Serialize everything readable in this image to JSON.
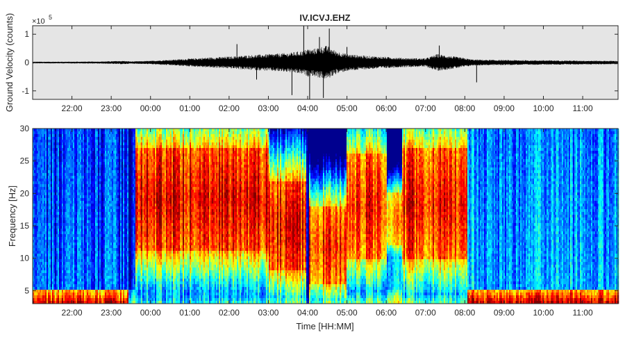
{
  "chart_data": [
    {
      "type": "line",
      "title": "IV.ICVJ.EHZ",
      "ylabel": "Ground Velocity (counts)",
      "y_exponent_label": "×10",
      "y_exponent": "5",
      "ylim": [
        -1.3,
        1.3
      ],
      "yticks": [
        -1,
        0,
        1
      ],
      "ytick_labels": [
        "-1",
        "0",
        "1"
      ],
      "xlim_hours": [
        21.0,
        35.9
      ],
      "xticks_hours": [
        22,
        23,
        24,
        25,
        26,
        27,
        28,
        29,
        30,
        31,
        32,
        33,
        34,
        35
      ],
      "xtick_labels": [
        "22:00",
        "23:00",
        "00:00",
        "01:00",
        "02:00",
        "03:00",
        "04:00",
        "05:00",
        "06:00",
        "07:00",
        "08:00",
        "09:00",
        "10:00",
        "11:00"
      ],
      "background": "#e5e5e5",
      "line_color": "#000000",
      "envelope": {
        "hours": [
          21.0,
          22.0,
          22.8,
          23.3,
          23.5,
          24.0,
          24.5,
          25.0,
          25.5,
          26.0,
          26.5,
          27.0,
          27.5,
          27.9,
          28.0,
          28.1,
          28.3,
          28.5,
          28.7,
          29.0,
          29.5,
          30.0,
          30.5,
          31.0,
          31.3,
          31.5,
          31.8,
          32.2,
          32.5,
          33.0,
          34.0,
          35.0,
          35.9
        ],
        "amplitude": [
          0.03,
          0.03,
          0.04,
          0.06,
          0.04,
          0.06,
          0.1,
          0.14,
          0.18,
          0.21,
          0.26,
          0.3,
          0.34,
          0.42,
          0.5,
          0.46,
          0.55,
          0.6,
          0.42,
          0.3,
          0.24,
          0.2,
          0.16,
          0.15,
          0.3,
          0.26,
          0.2,
          0.11,
          0.1,
          0.09,
          0.08,
          0.07,
          0.06
        ]
      },
      "spikes": [
        {
          "hour": 26.2,
          "value": 0.65
        },
        {
          "hour": 26.7,
          "value": -0.6
        },
        {
          "hour": 27.6,
          "value": -1.15
        },
        {
          "hour": 27.9,
          "value": 1.3
        },
        {
          "hour": 28.05,
          "value": -1.3
        },
        {
          "hour": 28.3,
          "value": 0.9
        },
        {
          "hour": 28.4,
          "value": -1.25
        },
        {
          "hour": 28.55,
          "value": 1.2
        },
        {
          "hour": 29.0,
          "value": 0.55
        },
        {
          "hour": 31.35,
          "value": 0.6
        },
        {
          "hour": 32.3,
          "value": -0.7
        }
      ]
    },
    {
      "type": "heatmap",
      "ylabel": "Frequency [Hz]",
      "xlabel": "Time [HH:MM]",
      "ylim": [
        3,
        30
      ],
      "yticks": [
        5,
        10,
        15,
        20,
        25,
        30
      ],
      "ytick_labels": [
        "5",
        "10",
        "15",
        "20",
        "25",
        "30"
      ],
      "xlim_hours": [
        21.0,
        35.9
      ],
      "xticks_hours": [
        22,
        23,
        24,
        25,
        26,
        27,
        28,
        29,
        30,
        31,
        32,
        33,
        34,
        35
      ],
      "xtick_labels": [
        "22:00",
        "23:00",
        "00:00",
        "01:00",
        "02:00",
        "03:00",
        "04:00",
        "05:00",
        "06:00",
        "07:00",
        "08:00",
        "09:00",
        "10:00",
        "11:00"
      ],
      "colormap": "jet",
      "colormap_stops": [
        "#00008f",
        "#0000ff",
        "#0080ff",
        "#00ffff",
        "#80ff80",
        "#ffff00",
        "#ff8000",
        "#ff0000",
        "#800000"
      ],
      "regions": [
        {
          "start": 21.0,
          "end": 23.45,
          "band_low": 0,
          "band_high": 0,
          "peak": 0.15,
          "low_boost": 0.9
        },
        {
          "start": 23.45,
          "end": 23.6,
          "band_low": 0,
          "band_high": 0,
          "peak": 0.05,
          "low_boost": 0.5
        },
        {
          "start": 23.6,
          "end": 27.0,
          "band_low": 11,
          "band_high": 27,
          "peak": 0.9,
          "low_boost": 0.4
        },
        {
          "start": 27.0,
          "end": 27.95,
          "band_low": 8,
          "band_high": 22,
          "peak": 0.9,
          "low_boost": 0.5
        },
        {
          "start": 27.95,
          "end": 28.05,
          "band_low": 3,
          "band_high": 30,
          "peak": 0.1,
          "low_boost": 0.2
        },
        {
          "start": 28.05,
          "end": 29.0,
          "band_low": 6,
          "band_high": 18,
          "peak": 0.85,
          "low_boost": 0.5
        },
        {
          "start": 29.0,
          "end": 30.0,
          "band_low": 10,
          "band_high": 26,
          "peak": 0.85,
          "low_boost": 0.5
        },
        {
          "start": 30.0,
          "end": 30.4,
          "band_low": 12,
          "band_high": 20,
          "peak": 0.7,
          "low_boost": 0.6
        },
        {
          "start": 30.4,
          "end": 32.05,
          "band_low": 10,
          "band_high": 27,
          "peak": 0.88,
          "low_boost": 0.5
        },
        {
          "start": 32.05,
          "end": 35.9,
          "band_low": 0,
          "band_high": 0,
          "peak": 0.25,
          "low_boost": 0.95
        }
      ]
    }
  ]
}
